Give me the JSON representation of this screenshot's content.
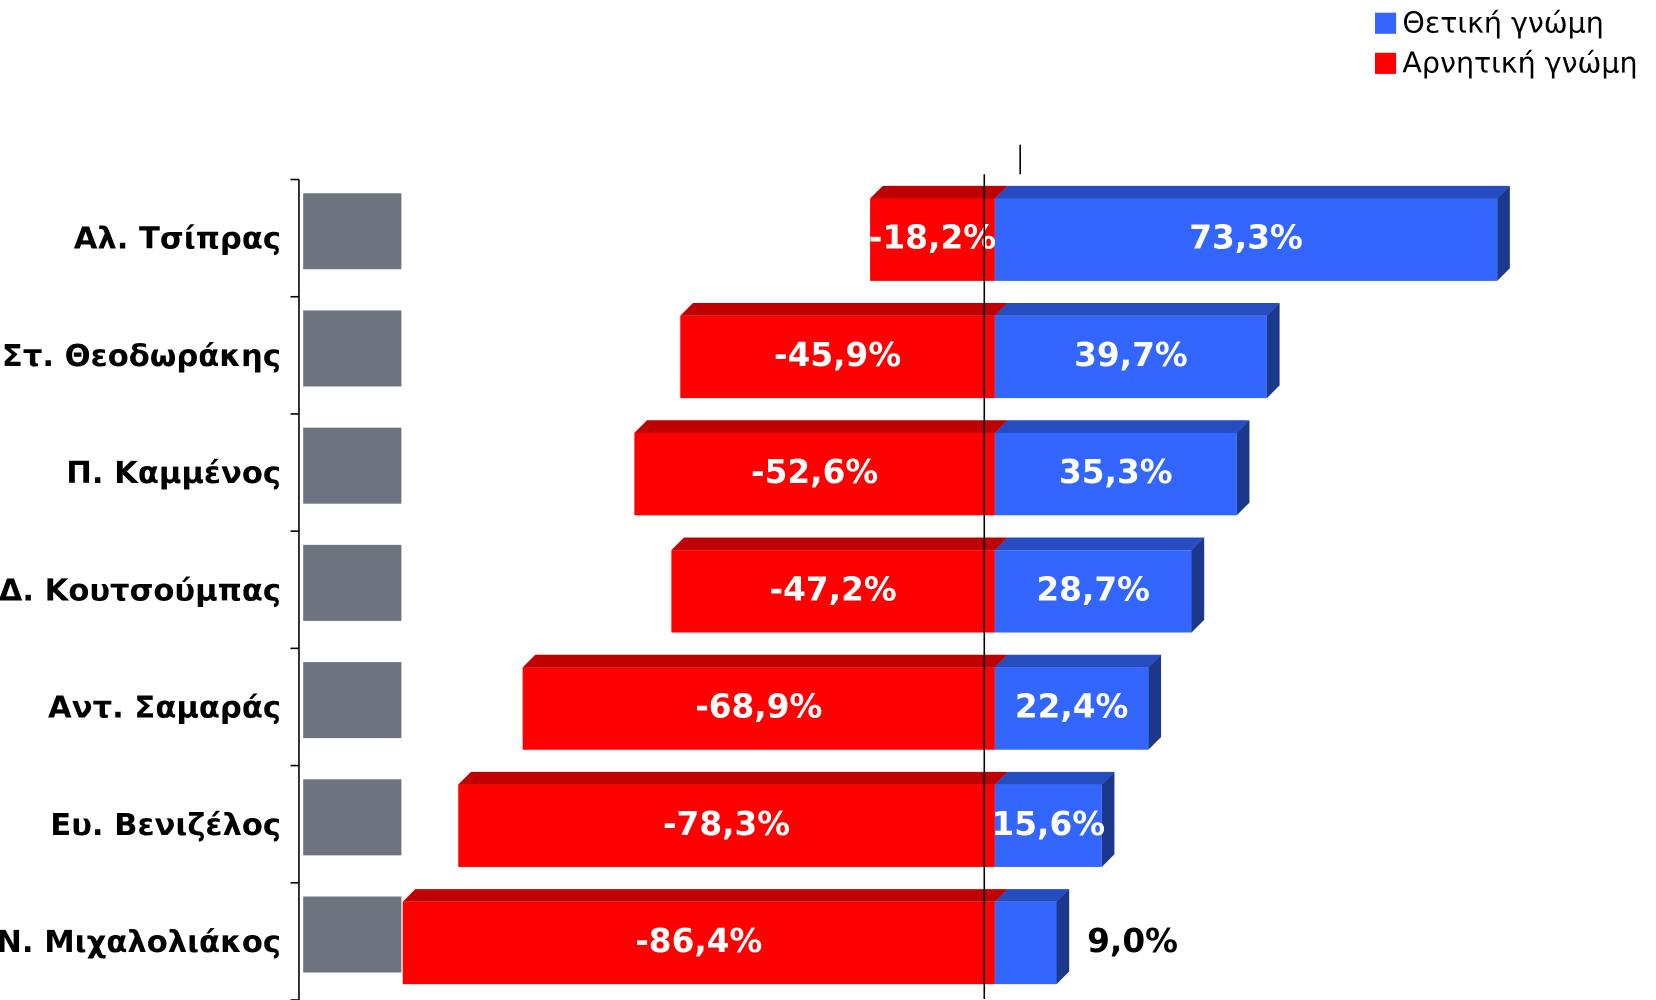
{
  "chart_data": {
    "type": "diverging-bar",
    "categories": [
      "Αλ. Τσίπρας",
      "Στ. Θεοδωράκης",
      "Π. Καμμένος",
      "Δ. Κουτσούμπας",
      "Αντ. Σαμαράς",
      "Ευ. Βενιζέλος",
      "Ν. Μιχαλολιάκος"
    ],
    "series": [
      {
        "name": "Θετική γνώμη",
        "color": "#3366ff",
        "values": [
          73.3,
          39.7,
          35.3,
          28.7,
          22.4,
          15.6,
          9.0
        ],
        "value_labels": [
          "73,3%",
          "39,7%",
          "35,3%",
          "28,7%",
          "22,4%",
          "15,6%",
          "9,0%"
        ]
      },
      {
        "name": "Αρνητική γνώμη",
        "color": "#ff0000",
        "values": [
          -18.2,
          -45.9,
          -52.6,
          -47.2,
          -68.9,
          -78.3,
          -86.4
        ],
        "value_labels": [
          "-18,2%",
          "-45,9%",
          "-52,6%",
          "-47,2%",
          "-68,9%",
          "-78,3%",
          "-86,4%"
        ]
      }
    ],
    "xlim": [
      -100,
      90
    ],
    "legend": "top-right"
  }
}
